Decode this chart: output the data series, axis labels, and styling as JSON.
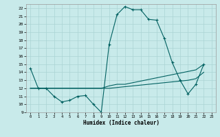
{
  "xlabel": "Humidex (Indice chaleur)",
  "xlim": [
    -0.5,
    23.5
  ],
  "ylim": [
    9,
    22.5
  ],
  "xticks": [
    0,
    1,
    2,
    3,
    4,
    5,
    6,
    7,
    8,
    9,
    10,
    11,
    12,
    13,
    14,
    15,
    16,
    17,
    18,
    19,
    20,
    21,
    22,
    23
  ],
  "yticks": [
    9,
    10,
    11,
    12,
    13,
    14,
    15,
    16,
    17,
    18,
    19,
    20,
    21,
    22
  ],
  "bg_color": "#c8eaea",
  "line_color": "#006060",
  "grid_color": "#aad4d4",
  "series1_x": [
    0,
    1,
    2,
    3,
    4,
    5,
    6,
    7,
    8,
    9,
    10,
    11,
    12,
    13,
    14,
    15,
    16,
    17,
    18,
    19,
    20,
    21,
    22
  ],
  "series1_y": [
    14.5,
    12.0,
    12.0,
    11.0,
    10.3,
    10.5,
    11.0,
    11.1,
    10.0,
    9.0,
    17.5,
    21.2,
    22.2,
    21.8,
    21.8,
    20.6,
    20.5,
    18.2,
    15.2,
    13.0,
    11.3,
    12.5,
    15.0
  ],
  "series2_x": [
    0,
    1,
    2,
    3,
    4,
    5,
    6,
    7,
    8,
    9,
    10,
    11,
    12,
    13,
    14,
    15,
    16,
    17,
    18,
    19,
    20,
    21,
    22
  ],
  "series2_y": [
    12.0,
    12.0,
    12.0,
    12.0,
    12.0,
    12.0,
    12.0,
    12.0,
    12.0,
    12.0,
    12.3,
    12.5,
    12.5,
    12.7,
    12.9,
    13.1,
    13.3,
    13.5,
    13.7,
    13.9,
    14.1,
    14.3,
    15.0
  ],
  "series3_x": [
    0,
    1,
    2,
    3,
    4,
    5,
    6,
    7,
    8,
    9,
    10,
    11,
    12,
    13,
    14,
    15,
    16,
    17,
    18,
    19,
    20,
    21,
    22
  ],
  "series3_y": [
    12.0,
    12.0,
    12.0,
    12.0,
    12.0,
    12.0,
    12.0,
    12.0,
    12.0,
    12.0,
    12.0,
    12.1,
    12.2,
    12.3,
    12.4,
    12.5,
    12.6,
    12.7,
    12.8,
    12.9,
    13.0,
    13.2,
    14.0
  ]
}
